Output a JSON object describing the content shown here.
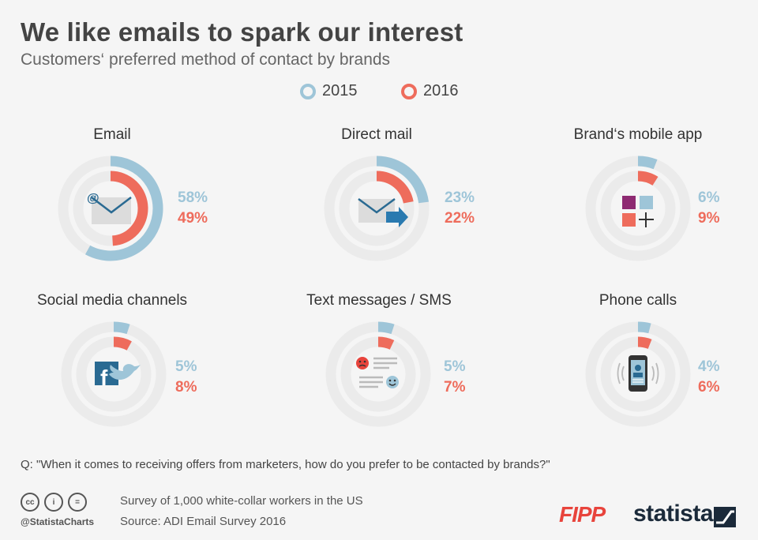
{
  "title": "We like emails to spark our interest",
  "subtitle": "Customers‘ preferred method of contact by brands",
  "legend": [
    {
      "label": "2015",
      "color": "#9ec5d8"
    },
    {
      "label": "2016",
      "color": "#ee6c5c"
    }
  ],
  "chart_data": {
    "type": "pie",
    "series_names": [
      "2015",
      "2016"
    ],
    "colors": {
      "2015": "#9ec5d8",
      "2016": "#ee6c5c",
      "track": "#ebebeb"
    },
    "categories": [
      {
        "name": "Email",
        "values": [
          58,
          49
        ],
        "labels": [
          "58%",
          "49%"
        ],
        "icon": "email-icon"
      },
      {
        "name": "Direct mail",
        "values": [
          23,
          22
        ],
        "labels": [
          "23%",
          "22%"
        ],
        "icon": "mail-envelope-arrow-icon"
      },
      {
        "name": "Brand‘s mobile app",
        "values": [
          6,
          9
        ],
        "labels": [
          "6%",
          "9%"
        ],
        "icon": "app-tiles-icon"
      },
      {
        "name": "Social media channels",
        "values": [
          5,
          8
        ],
        "labels": [
          "5%",
          "8%"
        ],
        "icon": "facebook-twitter-icon"
      },
      {
        "name": "Text messages / SMS",
        "values": [
          5,
          7
        ],
        "labels": [
          "5%",
          "7%"
        ],
        "icon": "chat-messages-icon"
      },
      {
        "name": "Phone calls",
        "values": [
          4,
          6
        ],
        "labels": [
          "4%",
          "6%"
        ],
        "icon": "smartphone-icon"
      }
    ]
  },
  "question": "Q: \"When it comes to receiving offers from marketers, how do you prefer to be contacted by brands?\"",
  "footer": {
    "handle": "@StatistaCharts",
    "survey": "Survey of 1,000 white-collar workers in the US",
    "source": "Source: ADI Email Survey 2016",
    "logo_fipp": "FIPP",
    "logo_statista": "statista"
  }
}
